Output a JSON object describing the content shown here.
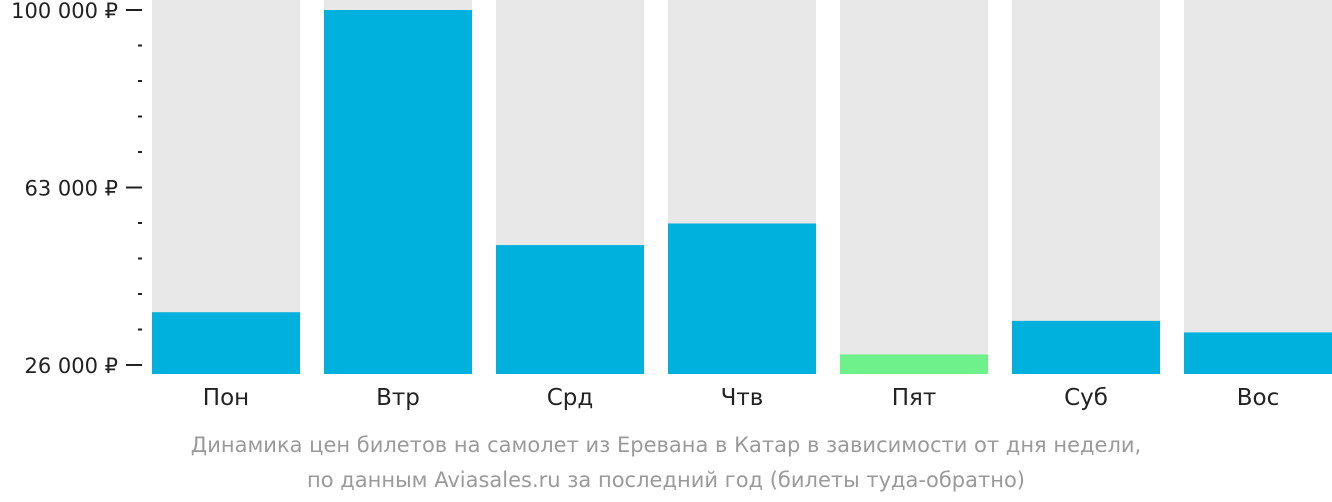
{
  "chart_data": {
    "type": "bar",
    "categories": [
      "Пон",
      "Втр",
      "Срд",
      "Чтв",
      "Пят",
      "Суб",
      "Вос"
    ],
    "values": [
      37000,
      100000,
      51000,
      55500,
      28200,
      35200,
      32800
    ],
    "ylim": [
      26000,
      101000
    ],
    "yticks": [
      {
        "value": 100000,
        "label": "100 000 ₽"
      },
      {
        "value": 63000,
        "label": "63 000 ₽"
      },
      {
        "value": 26000,
        "label": "26 000 ₽"
      }
    ],
    "minor_ticks": [
      92600,
      85200,
      77800,
      70400,
      55600,
      48200,
      40800,
      33400
    ],
    "caption_line1": "Динамика цен билетов на самолет из Еревана в Катар в зависимости от дня недели,",
    "caption_line2": "по данным Aviasales.ru за последний год (билеты туда-обратно)",
    "colors": {
      "bar": "#00b0dd",
      "bar_min": "#6ef08a",
      "background_bar": "#e8e8e8",
      "axis": "#222222",
      "caption": "#9a9a9a"
    }
  }
}
